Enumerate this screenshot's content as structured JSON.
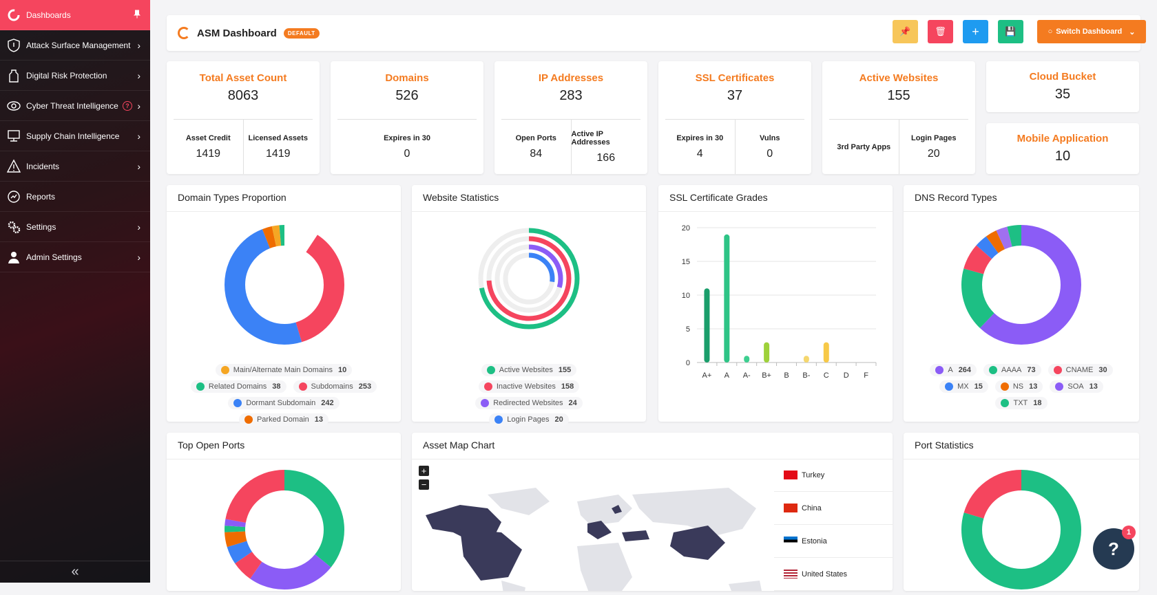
{
  "sidebar": {
    "items": [
      {
        "label": "Dashboards"
      },
      {
        "label": "Attack Surface Management"
      },
      {
        "label": "Digital Risk Protection"
      },
      {
        "label": "Cyber Threat Intelligence"
      },
      {
        "label": "Supply Chain Intelligence"
      },
      {
        "label": "Incidents"
      },
      {
        "label": "Reports"
      },
      {
        "label": "Settings"
      },
      {
        "label": "Admin Settings"
      }
    ],
    "help_mark": "?",
    "collapse": "«"
  },
  "header": {
    "title": "ASM Dashboard",
    "badge": "DEFAULT",
    "switch_label": "Switch Dashboard"
  },
  "stats": {
    "total": {
      "title": "Total Asset Count",
      "value": "8063",
      "sub": [
        {
          "label": "Asset Credit",
          "value": "1419"
        },
        {
          "label": "Licensed Assets",
          "value": "1419"
        }
      ]
    },
    "domains": {
      "title": "Domains",
      "value": "526",
      "sub": [
        {
          "label": "Expires in 30",
          "value": "0"
        }
      ]
    },
    "ip": {
      "title": "IP Addresses",
      "value": "283",
      "sub": [
        {
          "label": "Open Ports",
          "value": "84"
        },
        {
          "label": "Active IP Addresses",
          "value": "166"
        }
      ]
    },
    "ssl": {
      "title": "SSL Certificates",
      "value": "37",
      "sub": [
        {
          "label": "Expires in 30",
          "value": "4"
        },
        {
          "label": "Vulns",
          "value": "0"
        }
      ]
    },
    "web": {
      "title": "Active Websites",
      "value": "155",
      "sub": [
        {
          "label": "3rd Party Apps",
          "value": ""
        },
        {
          "label": "Login Pages",
          "value": "20"
        }
      ]
    },
    "cloud": {
      "title": "Cloud Bucket",
      "value": "35"
    },
    "mobile": {
      "title": "Mobile Application",
      "value": "10"
    }
  },
  "panels": {
    "domain_types": {
      "title": "Domain Types Proportion",
      "legend": [
        {
          "label": "Main/Alternate Main Domains",
          "value": "10",
          "color": "#f5a623"
        },
        {
          "label": "Related Domains",
          "value": "38",
          "color": "#1dbf84"
        },
        {
          "label": "Subdomains",
          "value": "253",
          "color": "#f5455e"
        },
        {
          "label": "Dormant Subdomain",
          "value": "242",
          "color": "#3b82f6"
        },
        {
          "label": "Parked Domain",
          "value": "13",
          "color": "#ef6c00"
        }
      ]
    },
    "website_stats": {
      "title": "Website Statistics",
      "legend": [
        {
          "label": "Active Websites",
          "value": "155",
          "color": "#1dbf84"
        },
        {
          "label": "Inactive Websites",
          "value": "158",
          "color": "#f5455e"
        },
        {
          "label": "Redirected Websites",
          "value": "24",
          "color": "#8b5cf6"
        },
        {
          "label": "Login Pages",
          "value": "20",
          "color": "#3b82f6"
        }
      ]
    },
    "ssl_grades": {
      "title": "SSL Certificate Grades"
    },
    "dns": {
      "title": "DNS Record Types",
      "legend": [
        {
          "label": "A",
          "value": "264",
          "color": "#8b5cf6"
        },
        {
          "label": "AAAA",
          "value": "73",
          "color": "#1dbf84"
        },
        {
          "label": "CNAME",
          "value": "30",
          "color": "#f5455e"
        },
        {
          "label": "MX",
          "value": "15",
          "color": "#3b82f6"
        },
        {
          "label": "NS",
          "value": "13",
          "color": "#ef6c00"
        },
        {
          "label": "SOA",
          "value": "13",
          "color": "#8b5cf6"
        },
        {
          "label": "TXT",
          "value": "18",
          "color": "#1dbf84"
        }
      ]
    },
    "ports": {
      "title": "Top Open Ports"
    },
    "map": {
      "title": "Asset Map Chart",
      "zoom_in": "+",
      "zoom_out": "−",
      "countries": [
        {
          "name": "Turkey"
        },
        {
          "name": "China"
        },
        {
          "name": "Estonia"
        },
        {
          "name": "United States"
        }
      ]
    },
    "port_stats": {
      "title": "Port Statistics"
    }
  },
  "chart_data": {
    "type": "bar",
    "categories": [
      "A+",
      "A",
      "A-",
      "B+",
      "B",
      "B-",
      "C",
      "D",
      "F"
    ],
    "values": [
      11,
      19,
      1,
      3,
      0,
      1,
      3,
      0,
      0
    ],
    "ylim": [
      0,
      20
    ],
    "yticks": [
      0,
      5,
      10,
      15,
      20
    ],
    "colors": [
      "#1a9e6b",
      "#2ec486",
      "#3dcf90",
      "#9ed13a",
      "#c9d63a",
      "#f5d76e",
      "#f7c948",
      "#f7b733",
      "#f5a623"
    ]
  },
  "help": {
    "label": "?",
    "badge": "1"
  }
}
